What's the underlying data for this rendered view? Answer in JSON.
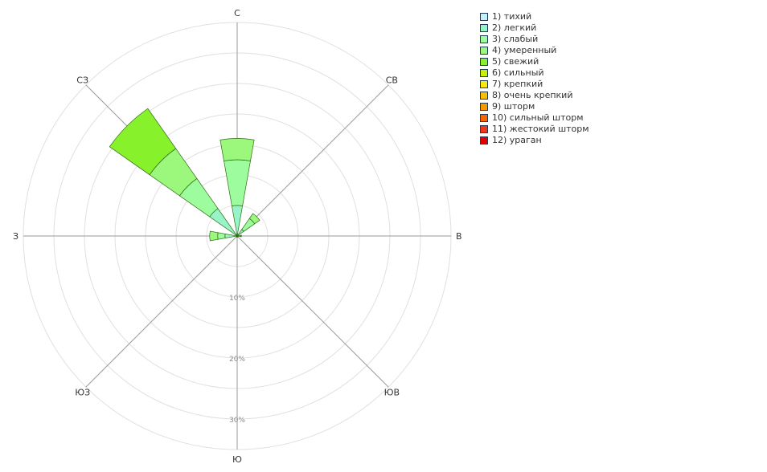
{
  "chart_data": {
    "type": "windrose",
    "radial_unit": "%",
    "radial_max": 35,
    "ring_step": 5,
    "radial_tick_labels": [
      "10%",
      "20%",
      "30%"
    ],
    "radial_tick_values": [
      10,
      20,
      30
    ],
    "directions": [
      "С",
      "СВ",
      "В",
      "ЮВ",
      "Ю",
      "ЮЗ",
      "З",
      "СЗ"
    ],
    "direction_angles": [
      0,
      45,
      90,
      135,
      180,
      225,
      270,
      315
    ],
    "grid": true,
    "legend_position": "top-right",
    "series": [
      {
        "name": "1) тихий",
        "color": "#c6f0f7",
        "values": [
          0.3,
          0.2,
          0.1,
          0.1,
          0.1,
          0.1,
          0.2,
          0.3
        ]
      },
      {
        "name": "2) легкий",
        "color": "#96f4c8",
        "values": [
          5.0,
          1.3,
          0.3,
          0.2,
          0.2,
          0.2,
          2.0,
          5.5
        ]
      },
      {
        "name": "3) слабый",
        "color": "#9dfc9d",
        "values": [
          12.5,
          3.5,
          0.6,
          0.2,
          0.2,
          0.2,
          3.2,
          11.5
        ]
      },
      {
        "name": "4) умеренный",
        "color": "#9bf87c",
        "values": [
          16.0,
          4.5,
          0.7,
          0.2,
          0.2,
          0.2,
          4.5,
          17.5
        ]
      },
      {
        "name": "5) свежий",
        "color": "#87f22c",
        "values": [
          16.0,
          4.5,
          0.7,
          0.2,
          0.2,
          0.2,
          4.5,
          25.5
        ]
      },
      {
        "name": "6) сильный",
        "color": "#c8f000",
        "values": [
          0,
          0,
          0,
          0,
          0,
          0,
          0,
          0
        ]
      },
      {
        "name": "7) крепкий",
        "color": "#f8e810",
        "values": [
          0,
          0,
          0,
          0,
          0,
          0,
          0,
          0
        ]
      },
      {
        "name": "8) очень крепкий",
        "color": "#f8c000",
        "values": [
          0,
          0,
          0,
          0,
          0,
          0,
          0,
          0
        ]
      },
      {
        "name": "9) шторм",
        "color": "#f89800",
        "values": [
          0,
          0,
          0,
          0,
          0,
          0,
          0,
          0
        ]
      },
      {
        "name": "10) сильный шторм",
        "color": "#f86800",
        "values": [
          0,
          0,
          0,
          0,
          0,
          0,
          0,
          0
        ]
      },
      {
        "name": "11) жестокий шторм",
        "color": "#f03818",
        "values": [
          0,
          0,
          0,
          0,
          0,
          0,
          0,
          0
        ]
      },
      {
        "name": "12) ураган",
        "color": "#e00000",
        "values": [
          0,
          0,
          0,
          0,
          0,
          0,
          0,
          0
        ]
      }
    ]
  }
}
